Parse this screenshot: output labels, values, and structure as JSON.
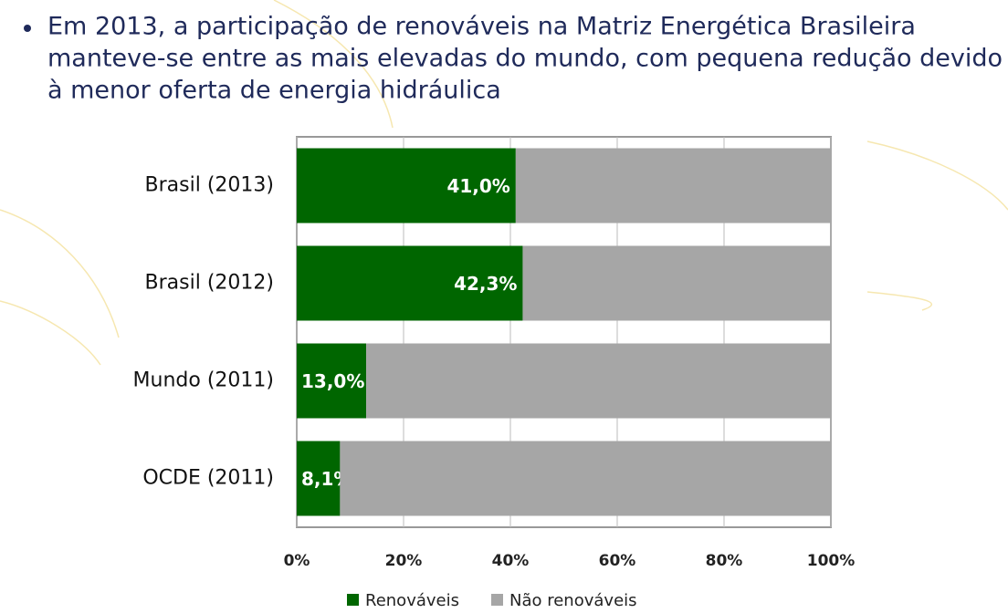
{
  "slide": {
    "bullet_lines": [
      "Em 2013, a participação de renováveis na Matriz Energética Brasileira",
      "manteve-se entre as mais elevadas do mundo, com pequena redução devido",
      "à menor oferta de energia hidráulica"
    ]
  },
  "chart_data": {
    "type": "stacked-hbar",
    "categories": [
      "Brasil (2013)",
      "Brasil (2012)",
      "Mundo (2011)",
      "OCDE (2011)"
    ],
    "series": [
      {
        "name": "Renováveis",
        "color": "#006600",
        "values": [
          41.0,
          42.3,
          13.0,
          8.1
        ],
        "value_labels": [
          "41,0%",
          "42,3%",
          "13,0%",
          "8,1%"
        ]
      },
      {
        "name": "Não renováveis",
        "color": "#a6a6a6",
        "values": [
          59.0,
          57.7,
          87.0,
          91.9
        ]
      }
    ],
    "xlim": [
      0,
      100
    ],
    "xticks": [
      {
        "value": 0,
        "label": "0%"
      },
      {
        "value": 20,
        "label": "20%"
      },
      {
        "value": 40,
        "label": "40%"
      },
      {
        "value": 60,
        "label": "60%"
      },
      {
        "value": 80,
        "label": "80%"
      },
      {
        "value": 100,
        "label": "100%"
      }
    ],
    "grid": true,
    "legend": "bottom"
  }
}
